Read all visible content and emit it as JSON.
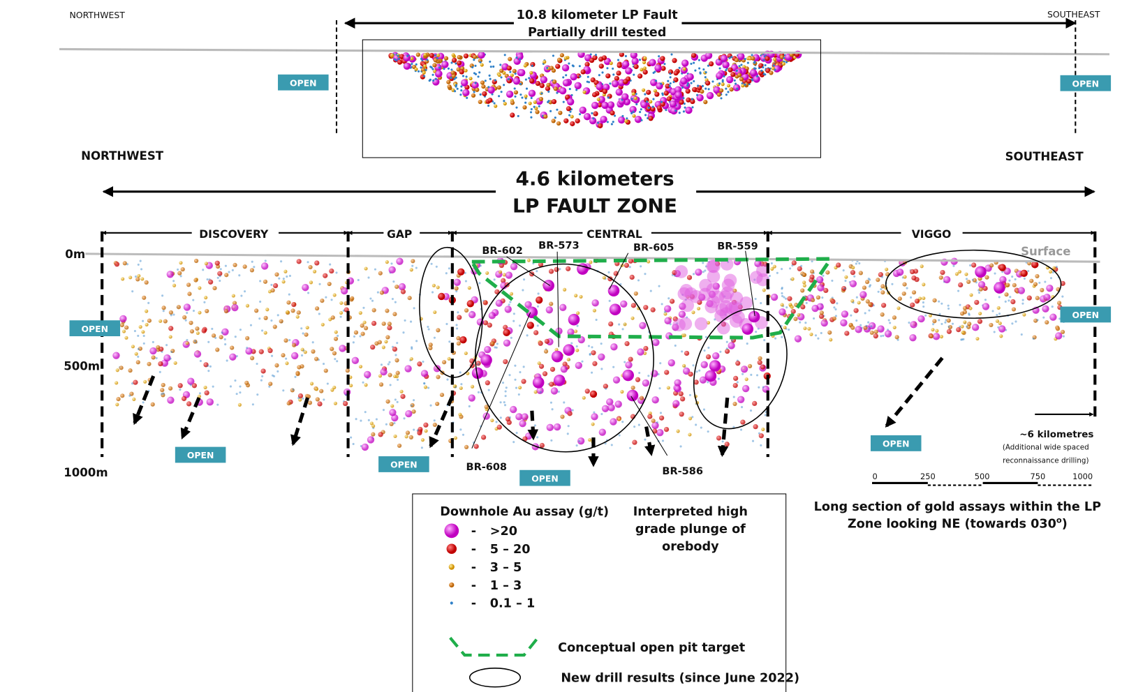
{
  "top_section": {
    "left_label": "NORTHWEST",
    "right_label": "SOUTHEAST",
    "title_lines": [
      "10.8 kilometer LP Fault",
      "Partially drill tested"
    ],
    "open_labels": [
      "OPEN",
      "OPEN"
    ]
  },
  "main_section": {
    "left_label": "NORTHWEST",
    "right_label": "SOUTHEAST",
    "title_lines": [
      "4.6 kilometers",
      "LP FAULT ZONE"
    ],
    "zones": [
      "DISCOVERY",
      "GAP",
      "CENTRAL",
      "VIGGO"
    ],
    "depths": [
      "0m",
      "500m",
      "1000m"
    ],
    "surface_label": "Surface",
    "drill_holes": [
      "BR-602",
      "BR-573",
      "BR-605",
      "BR-559",
      "BR-608",
      "BR-586"
    ],
    "open_labels": [
      "OPEN",
      "OPEN",
      "OPEN",
      "OPEN",
      "OPEN",
      "OPEN"
    ],
    "extension_note": [
      "~6 kilometres",
      "(Additional wide spaced",
      "reconnaissance drilling)"
    ],
    "scale_ticks": [
      "0",
      "250",
      "500",
      "750",
      "1000"
    ],
    "caption": {
      "line1": "Long section of gold assays within the LP",
      "line2": "Zone looking NE (towards 030",
      "superscript": "o",
      "close": ")"
    }
  },
  "legend": {
    "title": "Downhole Au assay (g/t)",
    "items": [
      {
        "dash": "-",
        "label": ">20"
      },
      {
        "dash": "-",
        "label": "5 – 20"
      },
      {
        "dash": "-",
        "label": "3 – 5"
      },
      {
        "dash": "-",
        "label": "1 – 3"
      },
      {
        "dash": "-",
        "label": "0.1 – 1"
      }
    ],
    "plunge_lines": [
      "Interpreted high",
      "grade plunge of",
      "orebody"
    ],
    "pit_label": "Conceptual open pit target",
    "new_results_label": "New drill results (since June 2022)"
  }
}
